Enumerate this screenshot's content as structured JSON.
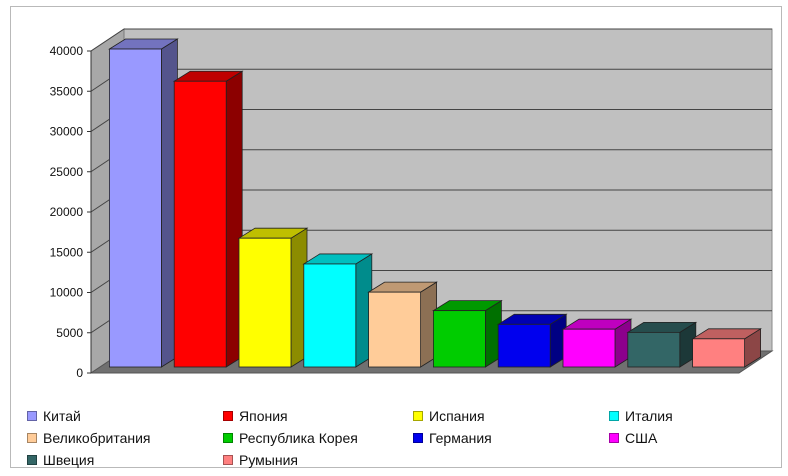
{
  "chart_data": {
    "type": "bar",
    "title": "",
    "xlabel": "",
    "ylabel": "",
    "ylim": [
      0,
      40000
    ],
    "yticks": [
      0,
      5000,
      10000,
      15000,
      20000,
      25000,
      30000,
      35000,
      40000
    ],
    "grid": true,
    "legend_position": "bottom",
    "categories": [
      "Китай",
      "Япония",
      "Испания",
      "Италия",
      "Великобритания",
      "Республика Корея",
      "Германия",
      "США",
      "Швеция",
      "Румыния"
    ],
    "values": [
      39500,
      35500,
      16000,
      12800,
      9300,
      7000,
      5300,
      4700,
      4300,
      3500
    ],
    "colors": [
      "#9999ff",
      "#ff0000",
      "#ffff00",
      "#00ffff",
      "#ffcc99",
      "#00cc00",
      "#0000ee",
      "#ff00ff",
      "#336666",
      "#ff8080"
    ]
  }
}
